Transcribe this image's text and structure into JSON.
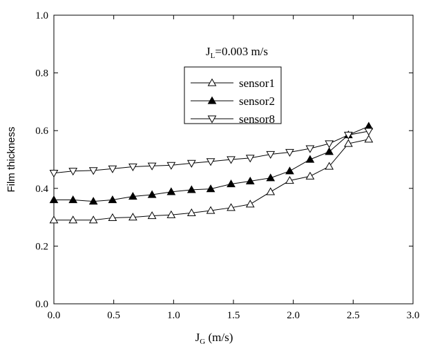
{
  "chart_data": {
    "type": "line",
    "title": "",
    "annotation": {
      "main": "J",
      "sub": "L",
      "rest": "=0.003 m/s"
    },
    "xlabel": {
      "main": "J",
      "sub": "G",
      "rest": " (m/s)"
    },
    "ylabel": "Film thickness",
    "xlim": [
      0.0,
      3.0
    ],
    "ylim": [
      0.0,
      1.0
    ],
    "xticks": [
      "0.0",
      "0.5",
      "1.0",
      "1.5",
      "2.0",
      "2.5",
      "3.0"
    ],
    "yticks": [
      "0.0",
      "0.2",
      "0.4",
      "0.6",
      "0.8",
      "1.0"
    ],
    "grid": false,
    "legend_position": "upper-center",
    "x": [
      0.0,
      0.16,
      0.33,
      0.49,
      0.66,
      0.82,
      0.98,
      1.15,
      1.31,
      1.48,
      1.64,
      1.81,
      1.97,
      2.14,
      2.3,
      2.46,
      2.63
    ],
    "series": [
      {
        "name": "sensor1",
        "marker": "triangle-up-open",
        "values": [
          0.29,
          0.29,
          0.29,
          0.298,
          0.3,
          0.305,
          0.308,
          0.315,
          0.323,
          0.333,
          0.345,
          0.388,
          0.427,
          0.442,
          0.476,
          0.555,
          0.57
        ]
      },
      {
        "name": "sensor2",
        "marker": "triangle-up-filled",
        "values": [
          0.36,
          0.36,
          0.355,
          0.36,
          0.372,
          0.378,
          0.388,
          0.395,
          0.398,
          0.415,
          0.425,
          0.436,
          0.46,
          0.5,
          0.527,
          0.585,
          0.615
        ]
      },
      {
        "name": "sensor8",
        "marker": "triangle-down-open",
        "values": [
          0.453,
          0.46,
          0.462,
          0.468,
          0.475,
          0.478,
          0.48,
          0.487,
          0.493,
          0.5,
          0.505,
          0.518,
          0.525,
          0.538,
          0.555,
          0.585,
          0.598
        ]
      }
    ]
  }
}
